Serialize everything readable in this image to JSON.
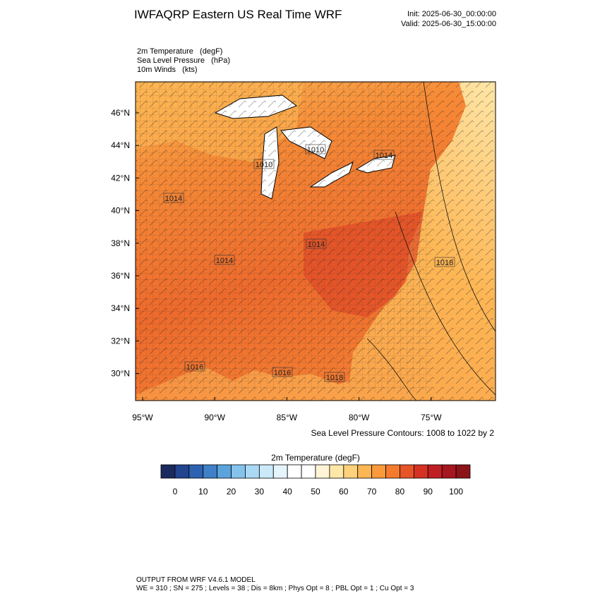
{
  "header": {
    "title": "IWFAQRP Eastern US Real Time WRF",
    "init": "Init: 2025-06-30_00:00:00",
    "valid": "Valid: 2025-06-30_15:00:00"
  },
  "fields": [
    "2m Temperature   (degF)",
    "Sea Level Pressure   (hPa)",
    "10m Winds   (kts)"
  ],
  "map": {
    "lat_labels": [
      "46°N",
      "44°N",
      "42°N",
      "40°N",
      "38°N",
      "36°N",
      "34°N",
      "32°N",
      "30°N"
    ],
    "lon_labels": [
      "95°W",
      "90°W",
      "85°W",
      "80°W",
      "75°W"
    ],
    "contour_labels": [
      "1010",
      "1010",
      "1014",
      "1014",
      "1014",
      "1014",
      "1018",
      "1016",
      "1016",
      "1018"
    ],
    "contour_note": "Sea Level Pressure Contours: 1008 to 1022 by 2"
  },
  "colorbar": {
    "title": "2m Temperature  (degF)",
    "colors": [
      "#1a2a5e",
      "#23448e",
      "#2d62b0",
      "#3f80c8",
      "#5ba3dc",
      "#84c3ec",
      "#a9d9f5",
      "#cbe9f9",
      "#e6f4fc",
      "#ffffff",
      "#ffffff",
      "#fff5d6",
      "#ffe7a8",
      "#fed17a",
      "#fdb654",
      "#fb9a3c",
      "#f47a2e",
      "#e65428",
      "#d53224",
      "#bf1f24",
      "#a6161e",
      "#8c1418"
    ],
    "labels": [
      "0",
      "10",
      "20",
      "30",
      "40",
      "50",
      "60",
      "70",
      "80",
      "90",
      "100"
    ]
  },
  "footer": {
    "line1": "OUTPUT FROM WRF V4.6.1 MODEL",
    "line2": "WE = 310 ; SN = 275 ; Levels = 38 ; Dis = 8km ; Phys Opt = 8 ; PBL Opt = 1 ; Cu Opt = 3"
  }
}
